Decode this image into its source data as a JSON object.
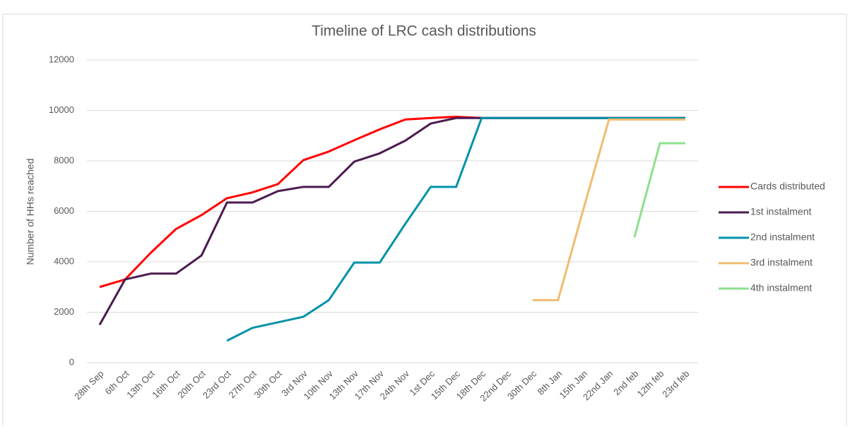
{
  "chart_data": {
    "type": "line",
    "title": "Timeline of LRC cash distributions",
    "y_label": "Number of HHs reached",
    "categories": [
      "28th Sep",
      "6th Oct",
      "13th Oct",
      "16th Oct",
      "20th Oct",
      "23rd Oct",
      "27th Oct",
      "30th Oct",
      "3rd Nov",
      "10th Nov",
      "13th Nov",
      "17th Nov",
      "24th Nov",
      "1st Dec",
      "15th Dec",
      "18th Dec",
      "22nd Dec",
      "30th Dec",
      "8th Jan",
      "15th Jan",
      "22nd Jan",
      "2nd feb",
      "12th feb",
      "23rd feb"
    ],
    "series": [
      {
        "name": "Cards distributed",
        "color": "#ff0000",
        "values": [
          3000,
          3300,
          4350,
          5300,
          5850,
          6520,
          6750,
          7080,
          8030,
          8370,
          8820,
          9250,
          9640,
          9700,
          9750,
          9700,
          9700,
          9700,
          9700,
          9700,
          9700,
          9700,
          9700,
          9700
        ]
      },
      {
        "name": "1st instalment",
        "color": "#4b1a4f",
        "values": [
          1500,
          3300,
          3530,
          3530,
          4250,
          6350,
          6350,
          6800,
          6970,
          6970,
          7970,
          8300,
          8800,
          9480,
          9700,
          9700,
          9700,
          9700,
          9700,
          9700,
          9700,
          9700,
          9700,
          9700
        ]
      },
      {
        "name": "2nd instalment",
        "color": "#0092a8",
        "values": [
          null,
          null,
          null,
          null,
          null,
          870,
          1380,
          1600,
          1820,
          2480,
          3970,
          3970,
          5500,
          6970,
          6970,
          9700,
          9700,
          9700,
          9700,
          9700,
          9700,
          9700,
          9700,
          9700
        ]
      },
      {
        "name": "3rd instalment",
        "color": "#f0bc70",
        "values": [
          null,
          null,
          null,
          null,
          null,
          null,
          null,
          null,
          null,
          null,
          null,
          null,
          null,
          null,
          null,
          null,
          null,
          2480,
          2480,
          6100,
          9640,
          9640,
          9640,
          9640
        ]
      },
      {
        "name": "4th instalment",
        "color": "#8ee08e",
        "values": [
          null,
          null,
          null,
          null,
          null,
          null,
          null,
          null,
          null,
          null,
          null,
          null,
          null,
          null,
          null,
          null,
          null,
          null,
          null,
          null,
          null,
          4970,
          8700,
          8700
        ]
      }
    ],
    "ylim": [
      0,
      12000
    ],
    "yticks": [
      0,
      2000,
      4000,
      6000,
      8000,
      10000,
      12000
    ],
    "grid": true,
    "legend": "right"
  }
}
